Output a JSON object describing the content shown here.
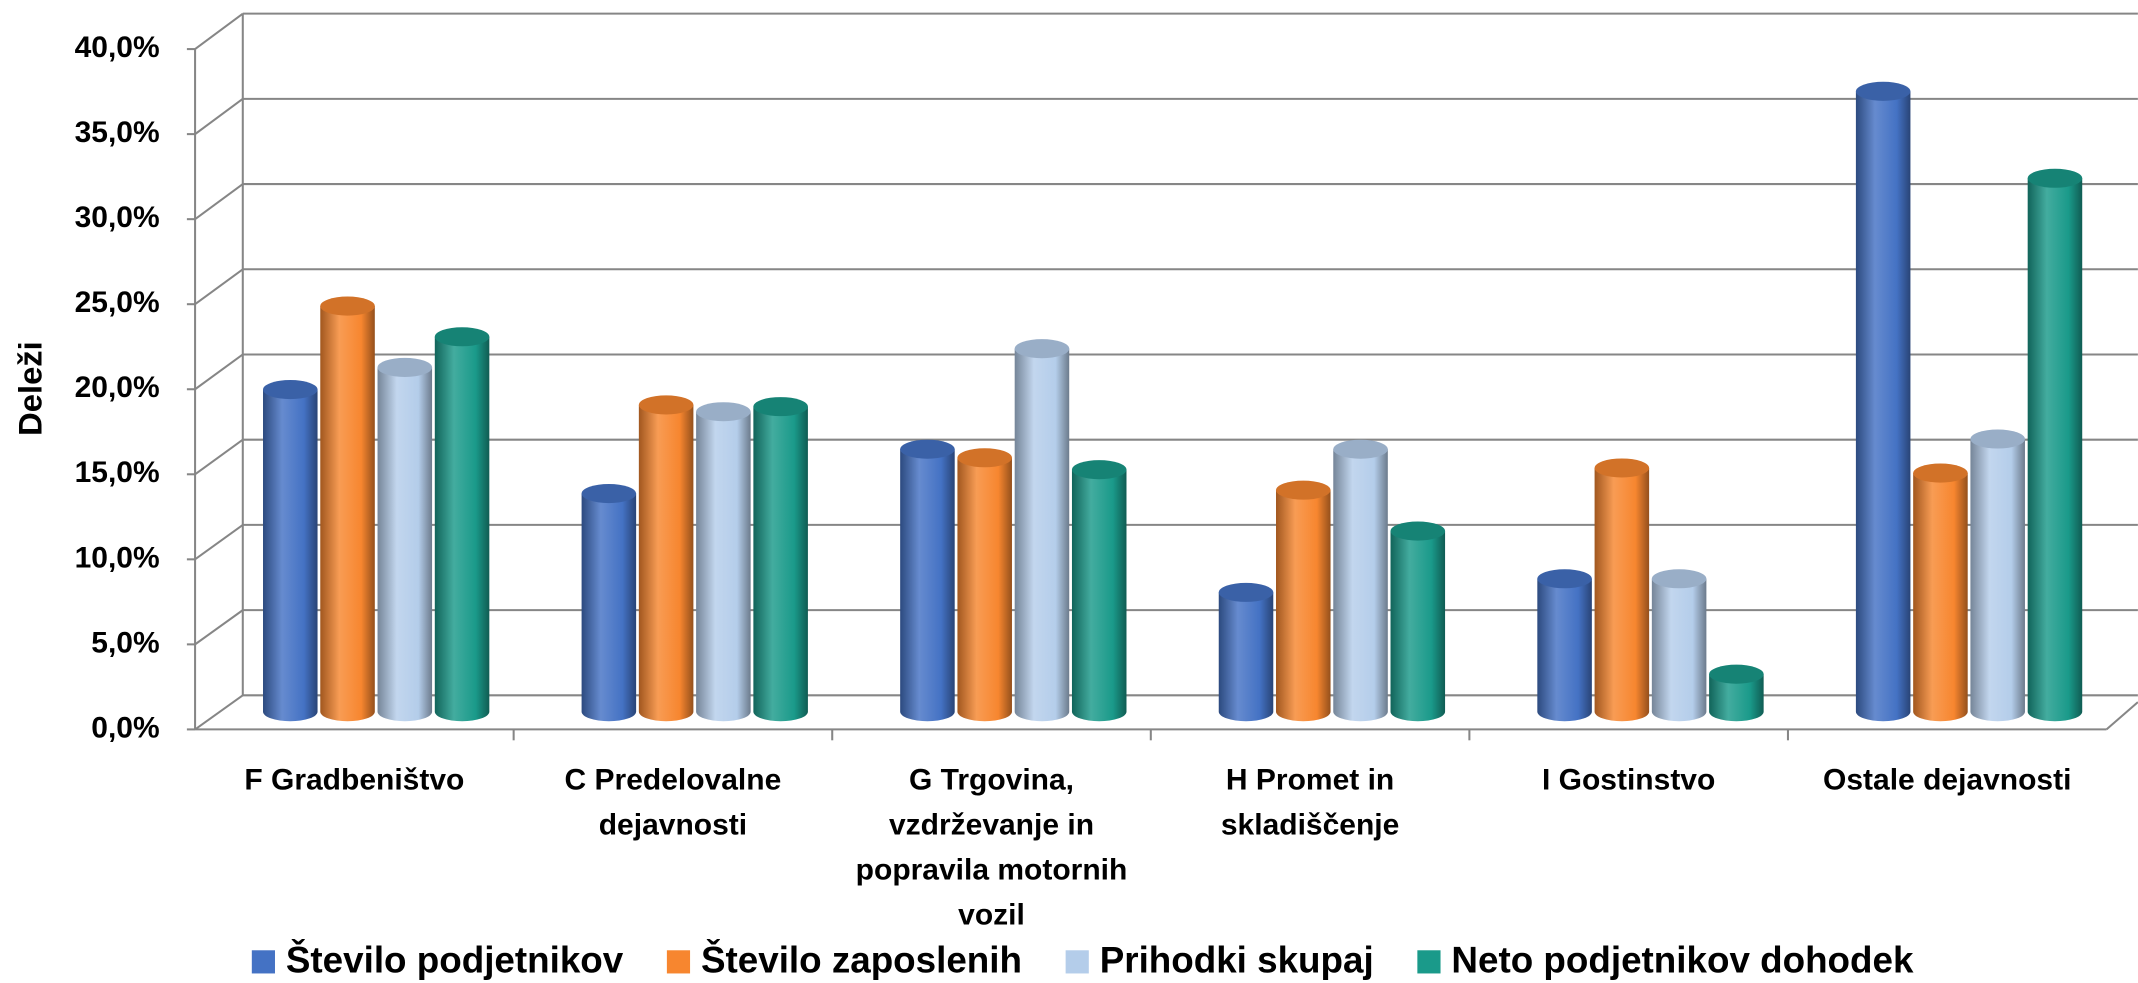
{
  "chart_data": {
    "type": "bar3d",
    "ylabel": "Deleži",
    "categories": [
      "F Gradbeništvo",
      "C Predelovalne dejavnosti",
      "G Trgovina, vzdrževanje in popravila motornih vozil",
      "H Promet in skladiščenje",
      "I Gostinstvo",
      "Ostale dejavnosti"
    ],
    "series": [
      {
        "name": "Število podjetnikov",
        "color": "#4472c4",
        "values": [
          18.9,
          12.8,
          15.4,
          7.0,
          7.8,
          36.4
        ]
      },
      {
        "name": "Število zaposlenih",
        "color": "#f7862f",
        "values": [
          23.8,
          18.0,
          14.9,
          13.0,
          14.3,
          14.0
        ]
      },
      {
        "name": "Prihodki skupaj",
        "color": "#b4cdea",
        "values": [
          20.2,
          17.6,
          21.3,
          15.4,
          7.8,
          16.0
        ]
      },
      {
        "name": "Neto podjetnikov dohodek",
        "color": "#1a9a8a",
        "values": [
          22.0,
          17.9,
          14.2,
          10.6,
          2.2,
          31.3
        ]
      }
    ],
    "ylim": [
      0,
      40
    ],
    "yticks": [
      {
        "value": 0,
        "label": "0,0%"
      },
      {
        "value": 5,
        "label": "5,0%"
      },
      {
        "value": 10,
        "label": "10,0%"
      },
      {
        "value": 15,
        "label": "15,0%"
      },
      {
        "value": 20,
        "label": "20,0%"
      },
      {
        "value": 25,
        "label": "25,0%"
      },
      {
        "value": 30,
        "label": "30,0%"
      },
      {
        "value": 35,
        "label": "35,0%"
      },
      {
        "value": 40,
        "label": "40,0%"
      }
    ],
    "grid": true,
    "legend": "bottom"
  }
}
